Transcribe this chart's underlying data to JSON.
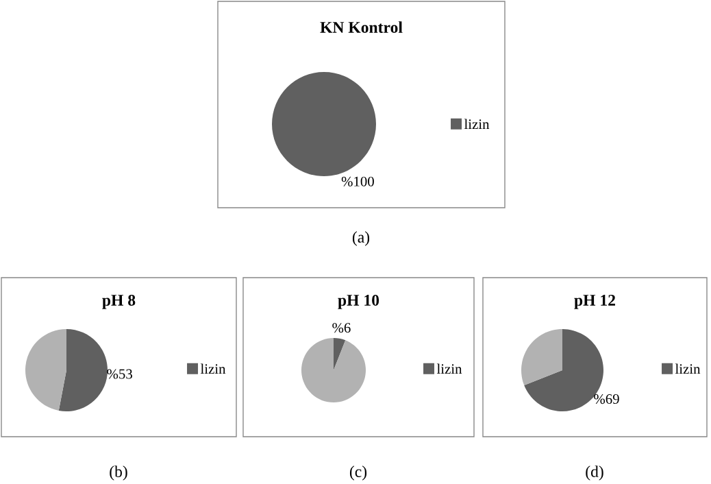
{
  "chart_data": [
    {
      "type": "pie",
      "title": "KN Kontrol",
      "categories": [
        "lizin"
      ],
      "values": [
        100
      ],
      "colors": [
        "#606060"
      ],
      "value_labels": [
        "%100"
      ],
      "legend": "right",
      "annotations": [
        "(a)"
      ]
    },
    {
      "type": "pie",
      "title": "pH 8",
      "categories": [
        "lizin",
        null
      ],
      "values": [
        53,
        47
      ],
      "colors": [
        "#606060",
        "#b2b2b2"
      ],
      "value_labels": [
        "%53",
        null
      ],
      "legend": "right",
      "annotations": [
        "(b)"
      ]
    },
    {
      "type": "pie",
      "title": "pH 10",
      "categories": [
        "lizin",
        null
      ],
      "values": [
        6,
        94
      ],
      "colors": [
        "#606060",
        "#b2b2b2"
      ],
      "value_labels": [
        "%6",
        null
      ],
      "legend": "right",
      "annotations": [
        "(c)"
      ]
    },
    {
      "type": "pie",
      "title": "pH 12",
      "categories": [
        "lizin",
        null
      ],
      "values": [
        69,
        31
      ],
      "colors": [
        "#606060",
        "#b2b2b2"
      ],
      "value_labels": [
        "%69",
        null
      ],
      "legend": "right",
      "annotations": [
        "(d)"
      ]
    }
  ]
}
